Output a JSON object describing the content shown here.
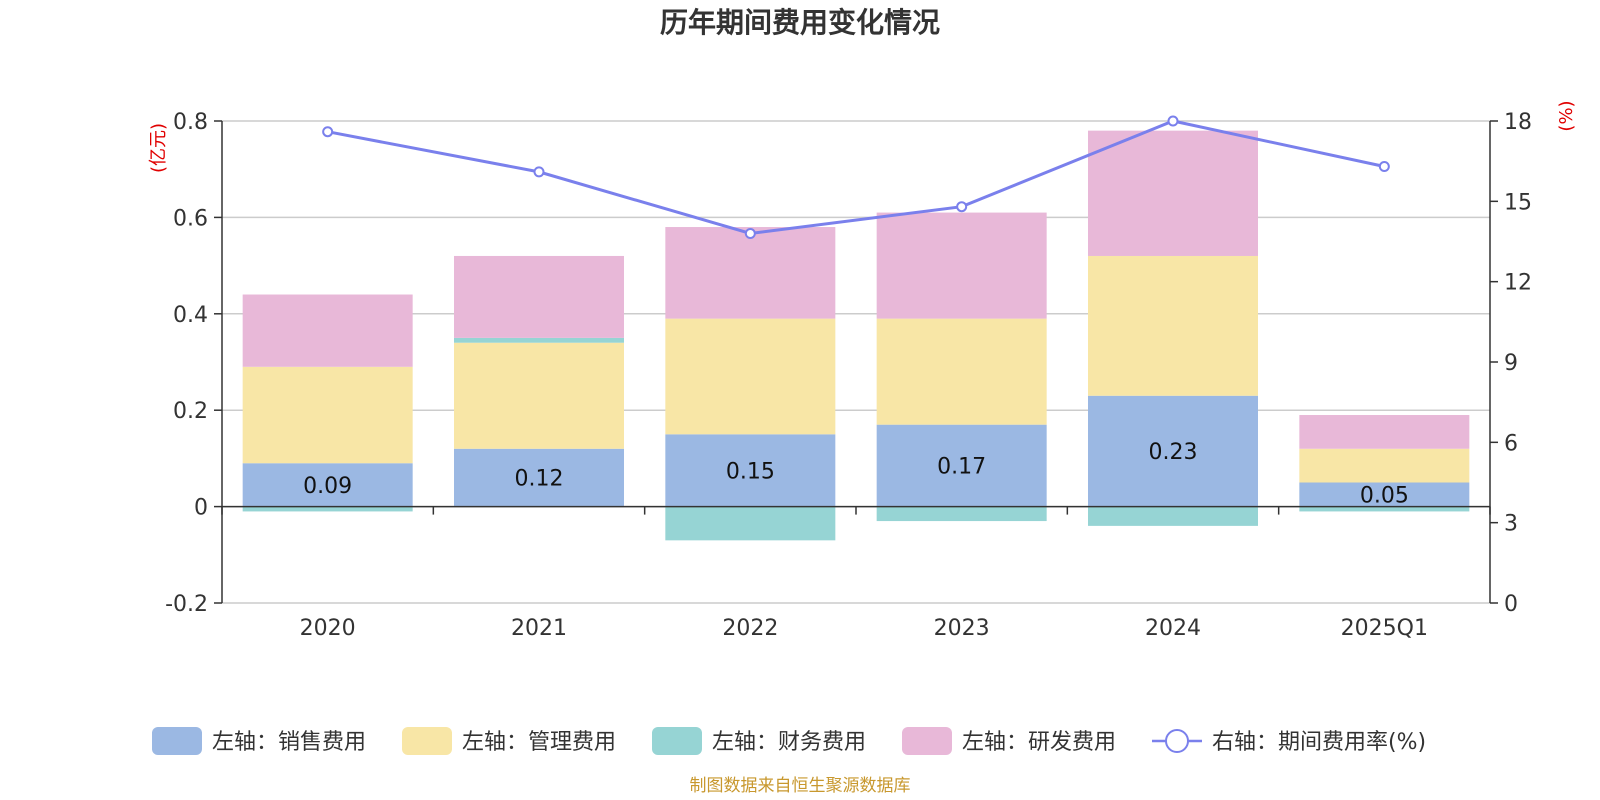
{
  "chart_data": {
    "type": "bar",
    "title": "历年期间费用变化情况",
    "categories": [
      "2020",
      "2021",
      "2022",
      "2023",
      "2024",
      "2025Q1"
    ],
    "left_axis": {
      "unit_label": "(亿元)",
      "ylim": [
        -0.2,
        0.8
      ],
      "ticks": [
        "-0.2",
        "0",
        "0.2",
        "0.4",
        "0.6",
        "0.8"
      ]
    },
    "right_axis": {
      "unit_label": "(%)",
      "ylim": [
        0,
        18
      ],
      "ticks": [
        "0",
        "3",
        "6",
        "9",
        "12",
        "15",
        "18"
      ]
    },
    "series": [
      {
        "name": "左轴：销售费用",
        "color": "#9bb8e3",
        "axis": "left",
        "kind": "stacked-bar",
        "values": [
          0.09,
          0.12,
          0.15,
          0.17,
          0.23,
          0.05
        ],
        "labels": [
          "0.09",
          "0.12",
          "0.15",
          "0.17",
          "0.23",
          "0.05"
        ]
      },
      {
        "name": "左轴：管理费用",
        "color": "#f8e6a6",
        "axis": "left",
        "kind": "stacked-bar",
        "values": [
          0.2,
          0.22,
          0.24,
          0.22,
          0.29,
          0.07
        ]
      },
      {
        "name": "左轴：财务费用",
        "color": "#96d4d4",
        "axis": "left",
        "kind": "stacked-bar",
        "values": [
          -0.01,
          0.01,
          -0.07,
          -0.03,
          -0.04,
          -0.01
        ]
      },
      {
        "name": "左轴：研发费用",
        "color": "#e8b8d8",
        "axis": "left",
        "kind": "stacked-bar",
        "values": [
          0.15,
          0.17,
          0.19,
          0.22,
          0.26,
          0.07
        ]
      },
      {
        "name": "右轴：期间费用率(%)",
        "color": "#7a80ec",
        "axis": "right",
        "kind": "line",
        "values": [
          17.6,
          16.1,
          13.8,
          14.8,
          18.0,
          16.3
        ]
      }
    ],
    "grid": true,
    "legend_position": "bottom"
  },
  "footer": {
    "source": "制图数据来自恒生聚源数据库"
  }
}
